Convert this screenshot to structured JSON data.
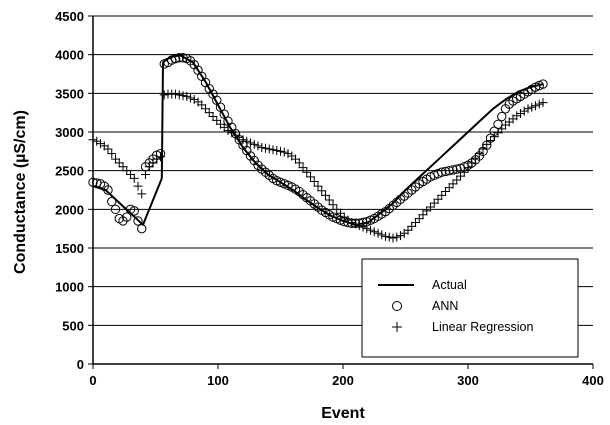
{
  "chart_data": {
    "type": "line",
    "title": "",
    "xlabel": "Event",
    "ylabel": "Conductance (µS/cm)",
    "xlim": [
      0,
      400
    ],
    "ylim": [
      0,
      4500
    ],
    "x_ticks": [
      0,
      100,
      200,
      300,
      400
    ],
    "y_ticks": [
      0,
      500,
      1000,
      1500,
      2000,
      2500,
      3000,
      3500,
      4000,
      4500
    ],
    "grid": "horizontal",
    "legend_position": "bottom-right",
    "series": [
      {
        "name": "Actual",
        "style": "line",
        "x": [
          0,
          10,
          20,
          30,
          40,
          45,
          55,
          56,
          60,
          65,
          70,
          80,
          90,
          100,
          110,
          120,
          130,
          140,
          150,
          160,
          170,
          180,
          190,
          200,
          210,
          220,
          230,
          240,
          250,
          260,
          270,
          280,
          290,
          300,
          310,
          320,
          330,
          340,
          350,
          360
        ],
        "y": [
          2300,
          2250,
          2100,
          1950,
          1800,
          2000,
          2400,
          3900,
          3950,
          3980,
          3990,
          3900,
          3650,
          3350,
          3050,
          2800,
          2600,
          2450,
          2350,
          2250,
          2130,
          2020,
          1920,
          1850,
          1800,
          1830,
          1950,
          2080,
          2250,
          2400,
          2550,
          2700,
          2850,
          3000,
          3150,
          3300,
          3420,
          3520,
          3580,
          3620
        ]
      },
      {
        "name": "ANN",
        "style": "circle",
        "x": [
          0,
          3,
          6,
          9,
          12,
          15,
          18,
          21,
          24,
          27,
          30,
          33,
          36,
          39,
          42,
          45,
          48,
          51,
          54,
          57,
          60,
          63,
          66,
          69,
          72,
          75,
          78,
          81,
          84,
          87,
          90,
          93,
          96,
          99,
          102,
          105,
          108,
          111,
          114,
          117,
          120,
          123,
          126,
          129,
          132,
          135,
          138,
          141,
          144,
          147,
          150,
          153,
          156,
          159,
          162,
          165,
          168,
          171,
          174,
          177,
          180,
          183,
          186,
          189,
          192,
          195,
          198,
          201,
          204,
          207,
          210,
          213,
          216,
          219,
          222,
          225,
          228,
          231,
          234,
          237,
          240,
          243,
          246,
          249,
          252,
          255,
          258,
          261,
          264,
          267,
          270,
          273,
          276,
          279,
          282,
          285,
          288,
          291,
          294,
          297,
          300,
          303,
          306,
          309,
          312,
          315,
          318,
          321,
          324,
          327,
          330,
          333,
          336,
          339,
          342,
          345,
          348,
          351,
          354,
          357,
          360
        ],
        "y": [
          2350,
          2340,
          2330,
          2300,
          2250,
          2100,
          2000,
          1880,
          1850,
          1900,
          2000,
          1980,
          1850,
          1750,
          2550,
          2600,
          2650,
          2700,
          2720,
          3880,
          3900,
          3930,
          3950,
          3960,
          3960,
          3950,
          3920,
          3870,
          3800,
          3720,
          3640,
          3560,
          3490,
          3410,
          3320,
          3230,
          3140,
          3060,
          2980,
          2900,
          2830,
          2760,
          2690,
          2630,
          2570,
          2520,
          2480,
          2440,
          2400,
          2370,
          2350,
          2330,
          2310,
          2290,
          2260,
          2230,
          2190,
          2150,
          2110,
          2070,
          2030,
          1990,
          1960,
          1930,
          1900,
          1880,
          1860,
          1840,
          1830,
          1820,
          1820,
          1820,
          1830,
          1840,
          1860,
          1880,
          1910,
          1940,
          1970,
          2010,
          2050,
          2090,
          2130,
          2170,
          2210,
          2250,
          2290,
          2330,
          2360,
          2390,
          2420,
          2440,
          2460,
          2480,
          2490,
          2500,
          2510,
          2520,
          2530,
          2550,
          2570,
          2600,
          2640,
          2690,
          2750,
          2830,
          2920,
          3010,
          3100,
          3200,
          3300,
          3360,
          3400,
          3430,
          3460,
          3490,
          3520,
          3550,
          3580,
          3600,
          3620
        ]
      },
      {
        "name": "Linear Regression",
        "style": "plus",
        "x": [
          0,
          3,
          6,
          9,
          12,
          15,
          18,
          21,
          24,
          27,
          30,
          33,
          36,
          39,
          42,
          45,
          48,
          51,
          54,
          57,
          60,
          63,
          66,
          69,
          72,
          75,
          78,
          81,
          84,
          87,
          90,
          93,
          96,
          99,
          102,
          105,
          108,
          111,
          114,
          117,
          120,
          123,
          126,
          129,
          132,
          135,
          138,
          141,
          144,
          147,
          150,
          153,
          156,
          159,
          162,
          165,
          168,
          171,
          174,
          177,
          180,
          183,
          186,
          189,
          192,
          195,
          198,
          201,
          204,
          207,
          210,
          213,
          216,
          219,
          222,
          225,
          228,
          231,
          234,
          237,
          240,
          243,
          246,
          249,
          252,
          255,
          258,
          261,
          264,
          267,
          270,
          273,
          276,
          279,
          282,
          285,
          288,
          291,
          294,
          297,
          300,
          303,
          306,
          309,
          312,
          315,
          318,
          321,
          324,
          327,
          330,
          333,
          336,
          339,
          342,
          345,
          348,
          351,
          354,
          357,
          360
        ],
        "y": [
          2900,
          2880,
          2850,
          2820,
          2780,
          2720,
          2650,
          2600,
          2550,
          2500,
          2450,
          2400,
          2300,
          2200,
          2450,
          2550,
          2600,
          2650,
          2680,
          3480,
          3490,
          3490,
          3490,
          3480,
          3470,
          3460,
          3440,
          3420,
          3390,
          3350,
          3300,
          3250,
          3200,
          3150,
          3100,
          3060,
          3020,
          2990,
          2960,
          2930,
          2900,
          2880,
          2860,
          2840,
          2820,
          2800,
          2790,
          2780,
          2770,
          2760,
          2750,
          2740,
          2720,
          2690,
          2650,
          2600,
          2540,
          2480,
          2420,
          2360,
          2300,
          2240,
          2180,
          2120,
          2060,
          2000,
          1950,
          1900,
          1860,
          1830,
          1810,
          1790,
          1770,
          1750,
          1730,
          1710,
          1690,
          1670,
          1650,
          1640,
          1630,
          1640,
          1660,
          1690,
          1730,
          1780,
          1830,
          1880,
          1930,
          1980,
          2030,
          2080,
          2130,
          2180,
          2230,
          2280,
          2330,
          2380,
          2430,
          2480,
          2540,
          2600,
          2660,
          2720,
          2780,
          2840,
          2890,
          2940,
          2990,
          3040,
          3090,
          3130,
          3170,
          3210,
          3240,
          3270,
          3300,
          3320,
          3340,
          3360,
          3380
        ]
      }
    ]
  }
}
